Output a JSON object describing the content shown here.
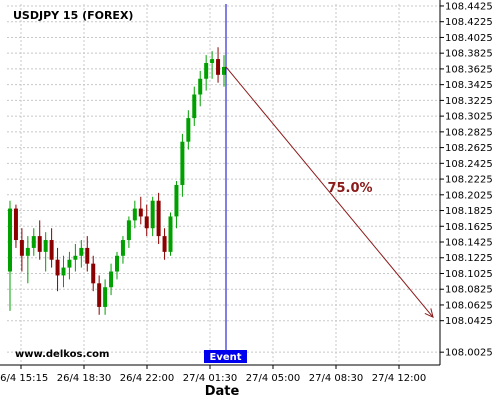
{
  "chart_data": {
    "type": "candlestick",
    "title": "USDJPY 15 (FOREX)",
    "xlabel": "Date",
    "ylabel": "",
    "watermark": "www.delkos.com",
    "grid": true,
    "ylim": [
      107.99,
      108.445
    ],
    "y_ticks": [
      108.0025,
      108.0425,
      108.0625,
      108.0825,
      108.1025,
      108.1225,
      108.1425,
      108.1625,
      108.1825,
      108.2025,
      108.2225,
      108.2425,
      108.2625,
      108.2825,
      108.3025,
      108.3225,
      108.3425,
      108.3625,
      108.3825,
      108.4025,
      108.4225,
      108.4425
    ],
    "y_tick_labels": [
      "108.0025",
      "108.0425",
      "108.0625",
      "108.0825",
      "108.1025",
      "108.1225",
      "108.1425",
      "108.1625",
      "108.1825",
      "108.2025",
      "108.2225",
      "108.2425",
      "108.2625",
      "108.2825",
      "108.3025",
      "108.3225",
      "108.3425",
      "108.3625",
      "108.3825",
      "108.4025",
      "108.4225",
      "108.4425"
    ],
    "x_tick_labels": [
      "26/4 15:15",
      "26/4 18:30",
      "26/4 22:00",
      "27/4 01:30",
      "27/4 05:00",
      "27/4 08:30",
      "27/4 12:00"
    ],
    "event_label": "Event",
    "projection_label": "75.0%",
    "projection_end_price": 108.047,
    "colors": {
      "up": "#00a000",
      "down": "#8b0000",
      "event_line": "#0000cc",
      "projection": "#8b1a1a",
      "grid": "#c8c8c8"
    },
    "candles": [
      {
        "o": 108.105,
        "h": 108.195,
        "l": 108.055,
        "c": 108.185
      },
      {
        "o": 108.185,
        "h": 108.19,
        "l": 108.135,
        "c": 108.145
      },
      {
        "o": 108.145,
        "h": 108.16,
        "l": 108.105,
        "c": 108.125
      },
      {
        "o": 108.125,
        "h": 108.15,
        "l": 108.09,
        "c": 108.135
      },
      {
        "o": 108.135,
        "h": 108.16,
        "l": 108.125,
        "c": 108.15
      },
      {
        "o": 108.15,
        "h": 108.17,
        "l": 108.12,
        "c": 108.13
      },
      {
        "o": 108.13,
        "h": 108.155,
        "l": 108.105,
        "c": 108.145
      },
      {
        "o": 108.145,
        "h": 108.16,
        "l": 108.11,
        "c": 108.12
      },
      {
        "o": 108.12,
        "h": 108.135,
        "l": 108.08,
        "c": 108.1
      },
      {
        "o": 108.1,
        "h": 108.125,
        "l": 108.085,
        "c": 108.11
      },
      {
        "o": 108.11,
        "h": 108.13,
        "l": 108.095,
        "c": 108.12
      },
      {
        "o": 108.12,
        "h": 108.14,
        "l": 108.105,
        "c": 108.125
      },
      {
        "o": 108.125,
        "h": 108.145,
        "l": 108.11,
        "c": 108.135
      },
      {
        "o": 108.135,
        "h": 108.15,
        "l": 108.105,
        "c": 108.115
      },
      {
        "o": 108.115,
        "h": 108.125,
        "l": 108.08,
        "c": 108.09
      },
      {
        "o": 108.09,
        "h": 108.1,
        "l": 108.05,
        "c": 108.06
      },
      {
        "o": 108.06,
        "h": 108.095,
        "l": 108.05,
        "c": 108.085
      },
      {
        "o": 108.085,
        "h": 108.115,
        "l": 108.075,
        "c": 108.105
      },
      {
        "o": 108.105,
        "h": 108.13,
        "l": 108.095,
        "c": 108.125
      },
      {
        "o": 108.125,
        "h": 108.15,
        "l": 108.115,
        "c": 108.145
      },
      {
        "o": 108.145,
        "h": 108.175,
        "l": 108.135,
        "c": 108.17
      },
      {
        "o": 108.17,
        "h": 108.195,
        "l": 108.16,
        "c": 108.185
      },
      {
        "o": 108.185,
        "h": 108.2,
        "l": 108.165,
        "c": 108.175
      },
      {
        "o": 108.175,
        "h": 108.19,
        "l": 108.15,
        "c": 108.16
      },
      {
        "o": 108.16,
        "h": 108.2,
        "l": 108.15,
        "c": 108.195
      },
      {
        "o": 108.195,
        "h": 108.205,
        "l": 108.14,
        "c": 108.15
      },
      {
        "o": 108.15,
        "h": 108.16,
        "l": 108.12,
        "c": 108.13
      },
      {
        "o": 108.13,
        "h": 108.18,
        "l": 108.125,
        "c": 108.175
      },
      {
        "o": 108.175,
        "h": 108.22,
        "l": 108.16,
        "c": 108.215
      },
      {
        "o": 108.215,
        "h": 108.28,
        "l": 108.2,
        "c": 108.27
      },
      {
        "o": 108.27,
        "h": 108.31,
        "l": 108.26,
        "c": 108.3
      },
      {
        "o": 108.3,
        "h": 108.34,
        "l": 108.29,
        "c": 108.33
      },
      {
        "o": 108.33,
        "h": 108.36,
        "l": 108.315,
        "c": 108.35
      },
      {
        "o": 108.35,
        "h": 108.38,
        "l": 108.335,
        "c": 108.37
      },
      {
        "o": 108.37,
        "h": 108.385,
        "l": 108.35,
        "c": 108.375
      },
      {
        "o": 108.375,
        "h": 108.39,
        "l": 108.345,
        "c": 108.355
      },
      {
        "o": 108.355,
        "h": 108.38,
        "l": 108.34,
        "c": 108.365
      }
    ]
  }
}
